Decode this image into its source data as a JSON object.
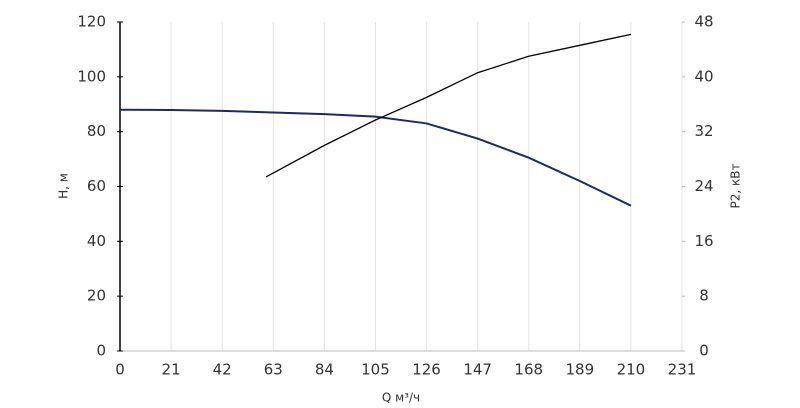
{
  "chart_data": {
    "type": "line",
    "x_label": "Q м³/ч",
    "y_label": "H, м",
    "y2_label": "P2, кВт",
    "xlim": [
      0,
      231
    ],
    "xticks": [
      0,
      21,
      42,
      63,
      84,
      105,
      126,
      147,
      168,
      189,
      210,
      231
    ],
    "ylim": [
      0,
      120
    ],
    "yticks": [
      0,
      20,
      40,
      60,
      80,
      100,
      120
    ],
    "y2lim": [
      0,
      48
    ],
    "y2ticks": [
      0,
      8,
      16,
      24,
      32,
      40,
      48
    ],
    "grid": true,
    "series": [
      {
        "name": "H",
        "color": "#1b2a6b",
        "x": [
          0,
          21,
          42,
          63,
          84,
          105,
          126,
          147,
          168,
          189,
          210
        ],
        "values": [
          88,
          87.9,
          87.6,
          87,
          86.4,
          85.5,
          83,
          77.5,
          70.5,
          62,
          53
        ]
      },
      {
        "name": "P2",
        "color": "#000000",
        "axis": "y2",
        "x": [
          60,
          84,
          105,
          126,
          147,
          168,
          189,
          210
        ],
        "values": [
          25.4,
          30,
          33.7,
          37,
          40.6,
          43,
          44.6,
          46.2
        ]
      }
    ]
  }
}
